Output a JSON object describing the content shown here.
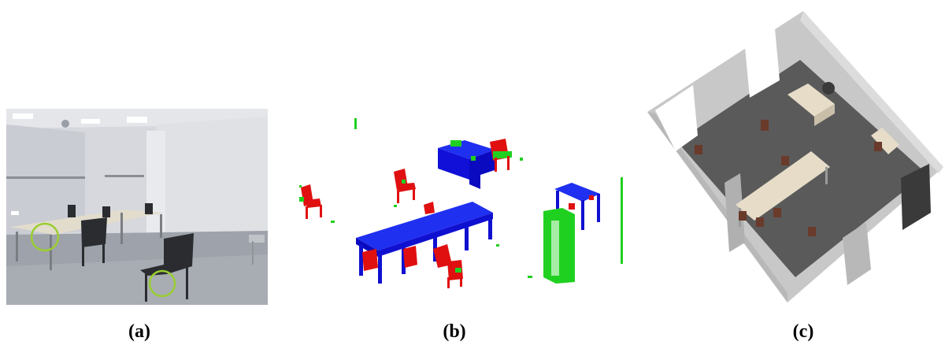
{
  "figure": {
    "panels": [
      {
        "id": "a",
        "label": "(a)"
      },
      {
        "id": "b",
        "label": "(b)"
      },
      {
        "id": "c",
        "label": "(c)"
      }
    ],
    "colors": {
      "table_points": "#1010e0",
      "chair_points": "#e01010",
      "other_points": "#20d020",
      "floor": "#5a5a5a",
      "walls": "#c8c8c8",
      "desk_top": "#e6dcc8",
      "chair_model": "#6a3a2a",
      "highlight_circle": "#9acd32"
    }
  }
}
